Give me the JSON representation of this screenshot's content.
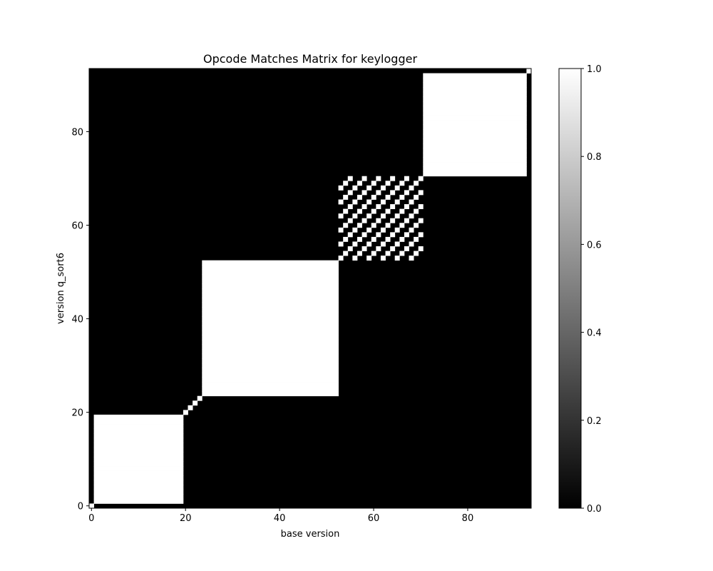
{
  "chart_data": {
    "type": "heatmap",
    "title": "Opcode Matches Matrix for keylogger",
    "xlabel": "base version",
    "ylabel": "version q_sort6",
    "n": 94,
    "xlim": [
      -0.5,
      93.5
    ],
    "ylim": [
      -0.5,
      93.5
    ],
    "x_ticks": [
      0,
      20,
      40,
      60,
      80
    ],
    "y_ticks": [
      0,
      20,
      40,
      60,
      80
    ],
    "colorbar": {
      "min": 0.0,
      "max": 1.0,
      "ticks": [
        "0.0",
        "0.2",
        "0.4",
        "0.6",
        "0.8",
        "1.0"
      ],
      "colormap": "gray"
    },
    "colors": {
      "low": "#000000",
      "high": "#ffffff"
    },
    "structure": {
      "description_of_values": "cell = 1 when row and column indices share the same group, else 0",
      "groups": [
        [
          0
        ],
        [
          1,
          2,
          3,
          4,
          5,
          6,
          7,
          8,
          9,
          10,
          11,
          12,
          13,
          14,
          15,
          16,
          17,
          18,
          19
        ],
        [
          20
        ],
        [
          21
        ],
        [
          22
        ],
        [
          23
        ],
        [
          24,
          25,
          26,
          27,
          28,
          29,
          30,
          31,
          32,
          33,
          34,
          35,
          36,
          37,
          38,
          39,
          40,
          41,
          42,
          43,
          44,
          45,
          46,
          47,
          48,
          49,
          50,
          51,
          52
        ],
        [
          53,
          56,
          59,
          62,
          65,
          68
        ],
        [
          54,
          57,
          60,
          63,
          66,
          69
        ],
        [
          55,
          58,
          61,
          64,
          67,
          70
        ],
        [
          71,
          72,
          73,
          74,
          75,
          76,
          77,
          78,
          79,
          80,
          81,
          82,
          83,
          84,
          85,
          86,
          87,
          88,
          89,
          90,
          91,
          92
        ],
        [
          93
        ]
      ]
    }
  }
}
